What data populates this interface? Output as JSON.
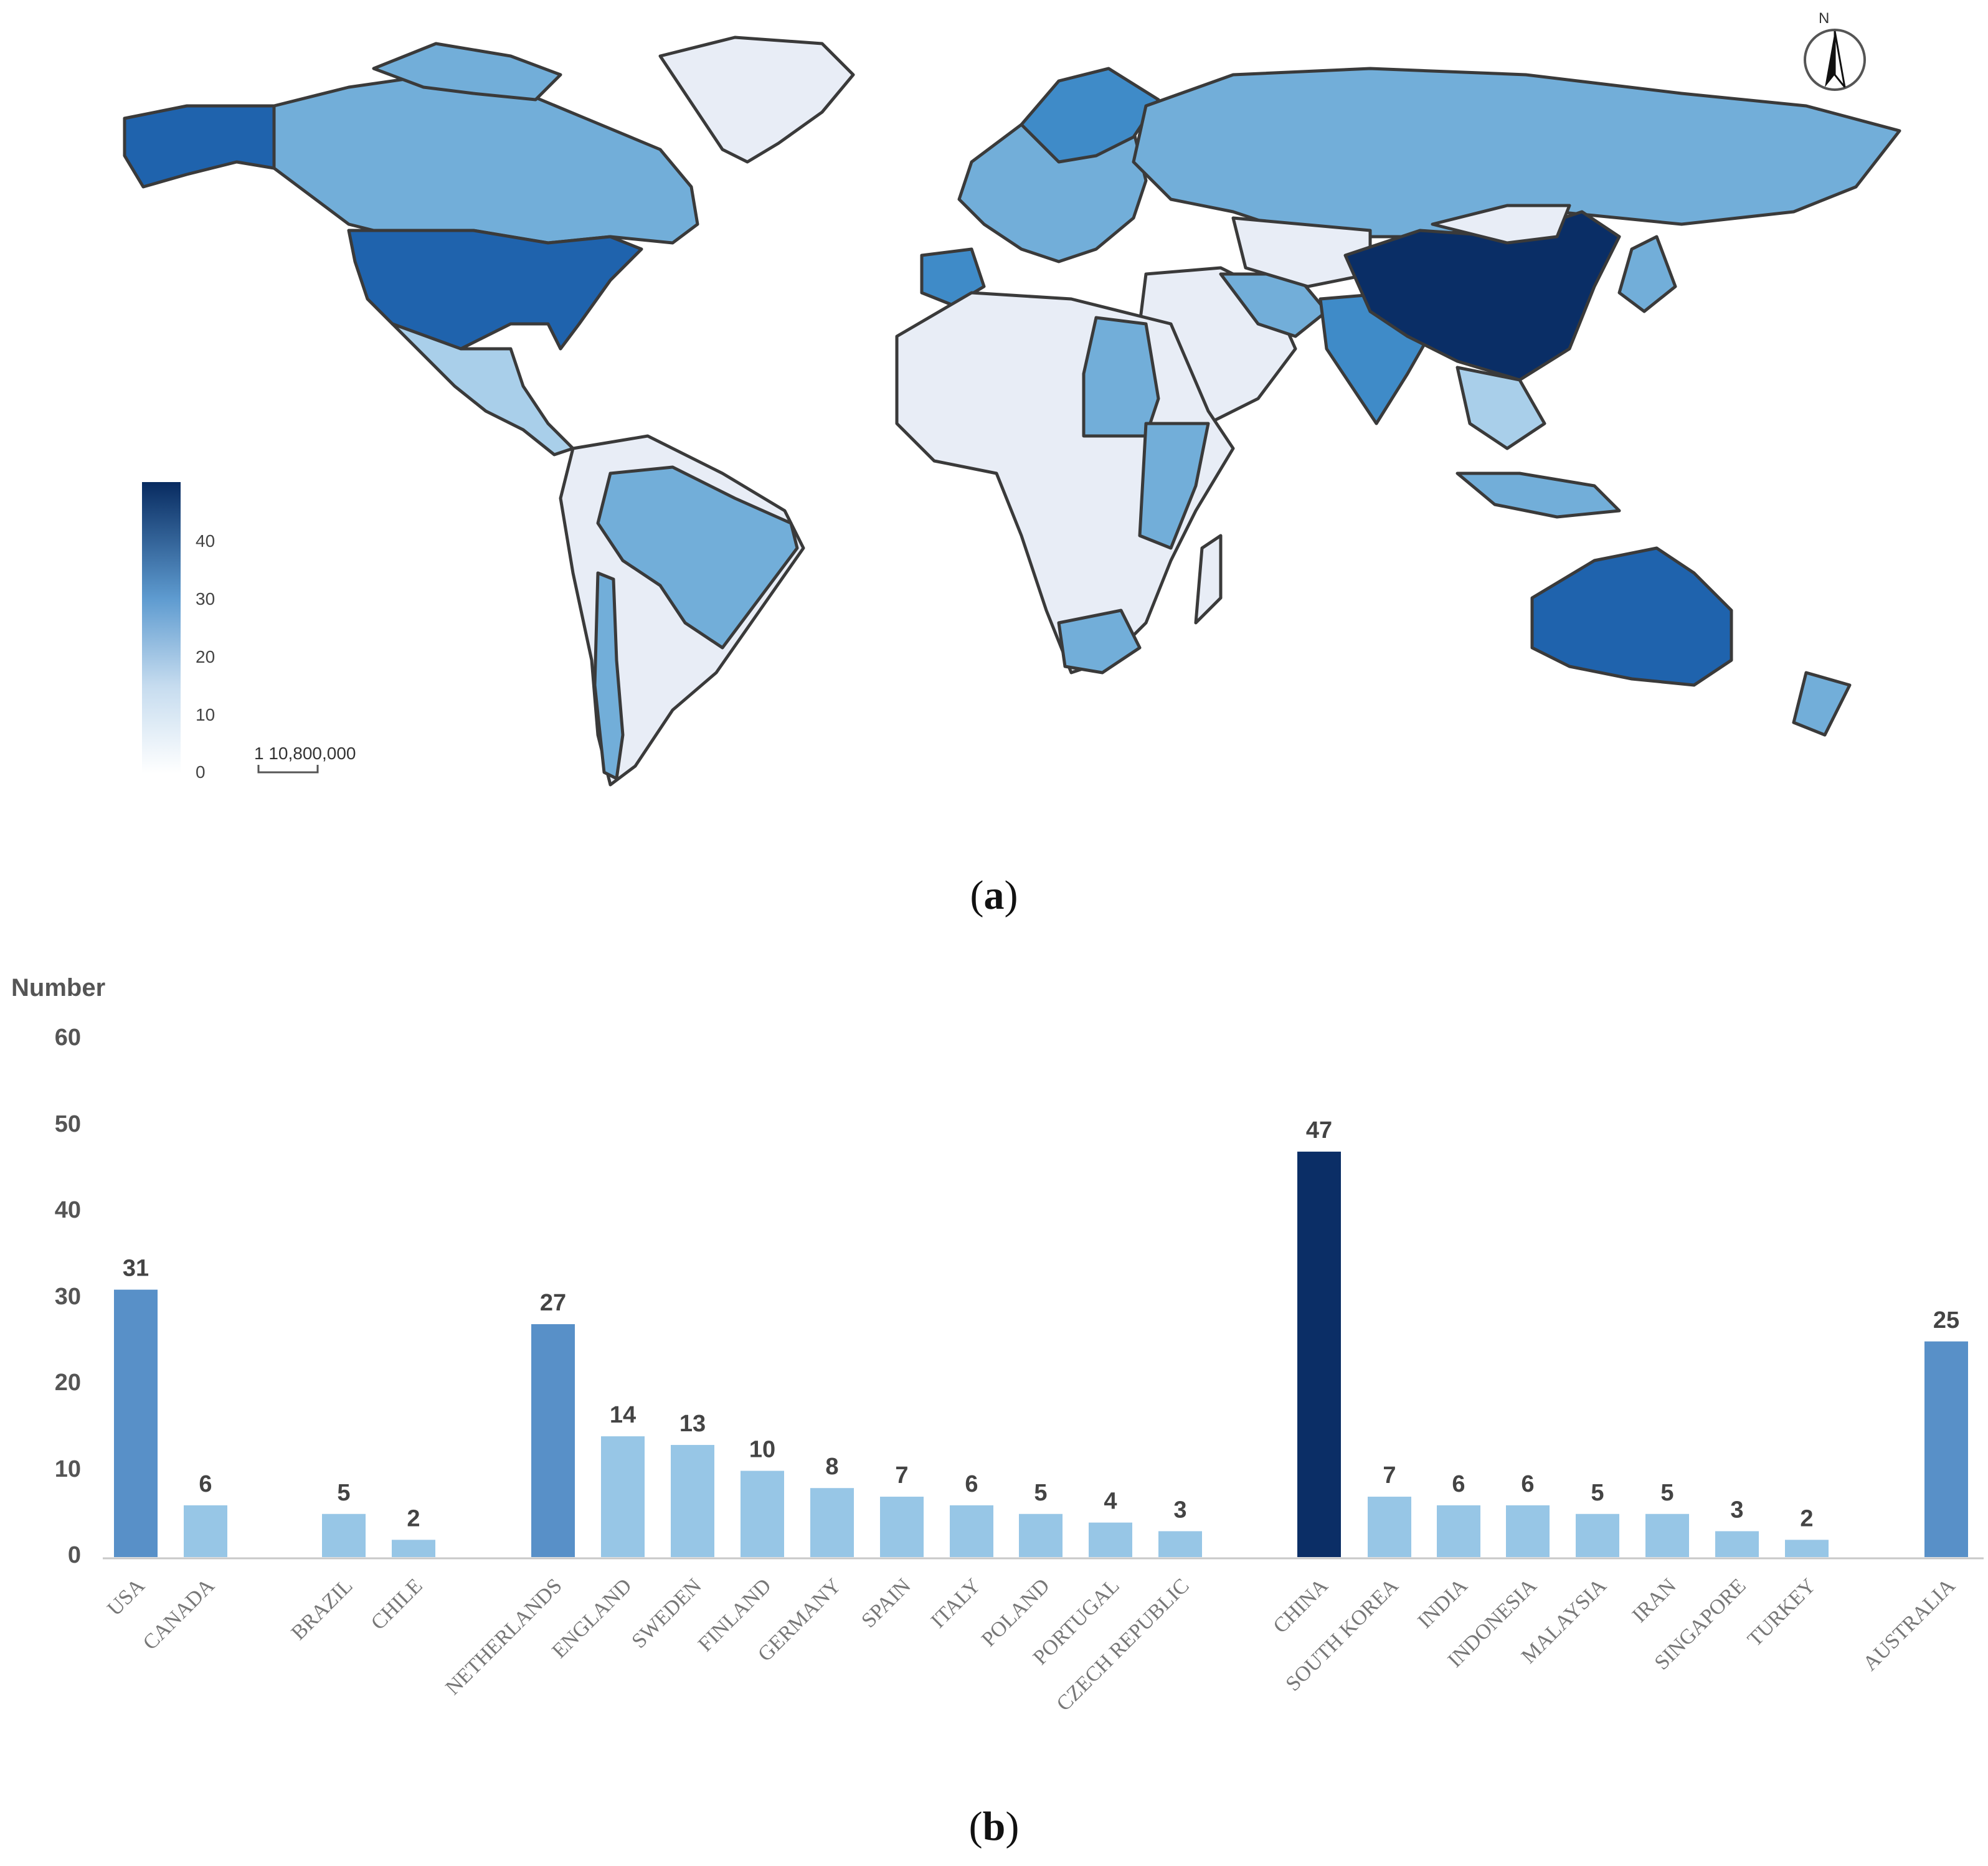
{
  "panel_labels": {
    "a": "a",
    "b": "b"
  },
  "map": {
    "legend_ticks": [
      "40",
      "30",
      "20",
      "10",
      "0"
    ],
    "scale_text": "1  10,800,000",
    "north_label": "N",
    "colors": {
      "darkest": "#0a2e66",
      "dark": "#1f63ad",
      "mid": "#3f8bc8",
      "light": "#72aed9",
      "pale": "#a9cfea",
      "none": "#e8edf6",
      "border": "#3a3a3a"
    }
  },
  "chart_data": {
    "type": "bar",
    "ylabel": "Number",
    "ylim": [
      0,
      60
    ],
    "yticks": [
      "0",
      "10",
      "20",
      "30",
      "40",
      "50",
      "60"
    ],
    "colors": {
      "high": "#5890c8",
      "low": "#97c6e6",
      "china": "#0b2e66"
    },
    "groups": [
      {
        "categories": [
          "USA",
          "CANADA"
        ],
        "values": [
          31,
          6
        ]
      },
      {
        "categories": [
          "BRAZIL",
          "CHILE"
        ],
        "values": [
          5,
          2
        ]
      },
      {
        "categories": [
          "NETHERLANDS",
          "ENGLAND",
          "SWEDEN",
          "FINLAND",
          "GERMANY",
          "SPAIN",
          "ITALY",
          "POLAND",
          "PORTUGAL",
          "CZECH REPUBLIC"
        ],
        "values": [
          27,
          14,
          13,
          10,
          8,
          7,
          6,
          5,
          4,
          3
        ]
      },
      {
        "categories": [
          "CHINA",
          "SOUTH KOREA",
          "INDIA",
          "INDONESIA",
          "MALAYSIA",
          "IRAN",
          "SINGAPORE",
          "TURKEY"
        ],
        "values": [
          47,
          7,
          6,
          6,
          5,
          5,
          3,
          2
        ]
      },
      {
        "categories": [
          "AUSTRALIA"
        ],
        "values": [
          25
        ]
      }
    ]
  }
}
